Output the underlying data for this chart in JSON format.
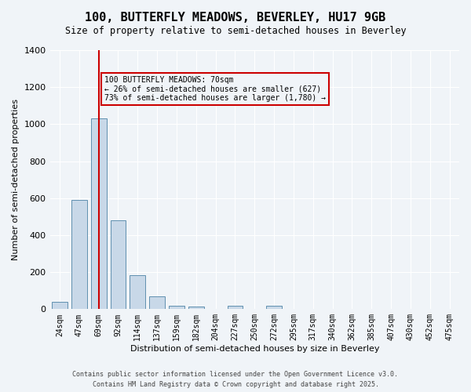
{
  "title_line1": "100, BUTTERFLY MEADOWS, BEVERLEY, HU17 9GB",
  "title_line2": "Size of property relative to semi-detached houses in Beverley",
  "xlabel": "Distribution of semi-detached houses by size in Beverley",
  "ylabel": "Number of semi-detached properties",
  "categories": [
    "24sqm",
    "47sqm",
    "69sqm",
    "92sqm",
    "114sqm",
    "137sqm",
    "159sqm",
    "182sqm",
    "204sqm",
    "227sqm",
    "250sqm",
    "272sqm",
    "295sqm",
    "317sqm",
    "340sqm",
    "362sqm",
    "385sqm",
    "407sqm",
    "430sqm",
    "452sqm",
    "475sqm"
  ],
  "values": [
    40,
    590,
    1030,
    480,
    185,
    70,
    18,
    13,
    0,
    18,
    0,
    18,
    0,
    0,
    0,
    0,
    0,
    0,
    0,
    0,
    0
  ],
  "bar_color": "#c8d8e8",
  "bar_edge_color": "#6090b0",
  "subject_index": 2,
  "subject_line_color": "#cc0000",
  "subject_sqm": 70,
  "subject_label": "100 BUTTERFLY MEADOWS: 70sqm",
  "pct_smaller": 26,
  "count_smaller": 627,
  "pct_larger": 73,
  "count_larger": 1780,
  "annotation_box_color": "#cc0000",
  "ylim": [
    0,
    1400
  ],
  "yticks": [
    0,
    200,
    400,
    600,
    800,
    1000,
    1200,
    1400
  ],
  "background_color": "#f0f4f8",
  "grid_color": "#ffffff",
  "footer_line1": "Contains HM Land Registry data © Crown copyright and database right 2025.",
  "footer_line2": "Contains public sector information licensed under the Open Government Licence v3.0."
}
